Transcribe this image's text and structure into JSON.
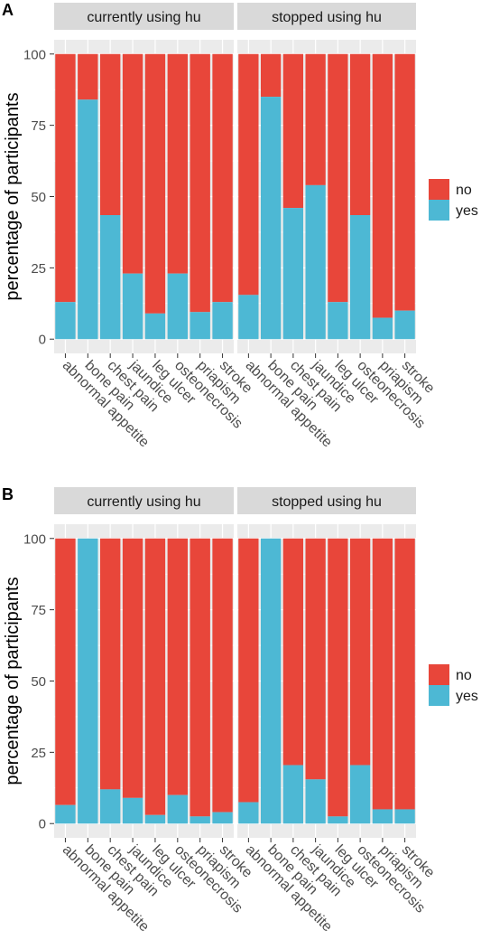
{
  "colors": {
    "no": "#e8463a",
    "yes": "#4db8d4",
    "panel_bg": "#ebebeb",
    "strip_bg": "#d9d9d9",
    "grid": "#ffffff",
    "text": "#4d4d4d"
  },
  "legend": {
    "items": [
      {
        "label": "no",
        "color": "#e8463a"
      },
      {
        "label": "yes",
        "color": "#4db8d4"
      }
    ]
  },
  "chart_data": [
    {
      "panel_label": "A",
      "type": "bar",
      "stacked": true,
      "ylabel": "percentage of participants",
      "ylim": [
        0,
        100
      ],
      "yticks": [
        0,
        25,
        50,
        75,
        100
      ],
      "grid": true,
      "legend_position": "right",
      "categories": [
        "abnormal appetite",
        "bone pain",
        "chest pain",
        "jaundice",
        "leg ulcer",
        "osteonecrosis",
        "priapism",
        "stroke"
      ],
      "facets": [
        {
          "label": "currently using hu",
          "yes": [
            13,
            84,
            43.5,
            23,
            9,
            23,
            9.5,
            13
          ],
          "no": [
            87,
            16,
            56.5,
            77,
            91,
            77,
            90.5,
            87
          ]
        },
        {
          "label": "stopped using hu",
          "yes": [
            15.5,
            85,
            46,
            54,
            13,
            43.5,
            7.5,
            10
          ],
          "no": [
            84.5,
            15,
            54,
            46,
            87,
            56.5,
            92.5,
            90
          ]
        }
      ]
    },
    {
      "panel_label": "B",
      "type": "bar",
      "stacked": true,
      "ylabel": "percentage of participants",
      "ylim": [
        0,
        100
      ],
      "yticks": [
        0,
        25,
        50,
        75,
        100
      ],
      "grid": true,
      "legend_position": "right",
      "categories": [
        "abnormal appetite",
        "bone pain",
        "chest pain",
        "jaundice",
        "leg ulcer",
        "osteonecrosis",
        "priapism",
        "stroke"
      ],
      "facets": [
        {
          "label": "currently using hu",
          "yes": [
            6.5,
            100,
            12,
            9,
            3,
            10,
            2.5,
            4
          ],
          "no": [
            93.5,
            0,
            88,
            91,
            97,
            90,
            97.5,
            96
          ]
        },
        {
          "label": "stopped using hu",
          "yes": [
            7.5,
            100,
            20.5,
            15.5,
            2.5,
            20.5,
            5,
            5
          ],
          "no": [
            92.5,
            0,
            79.5,
            84.5,
            97.5,
            79.5,
            95,
            95
          ]
        }
      ]
    }
  ]
}
